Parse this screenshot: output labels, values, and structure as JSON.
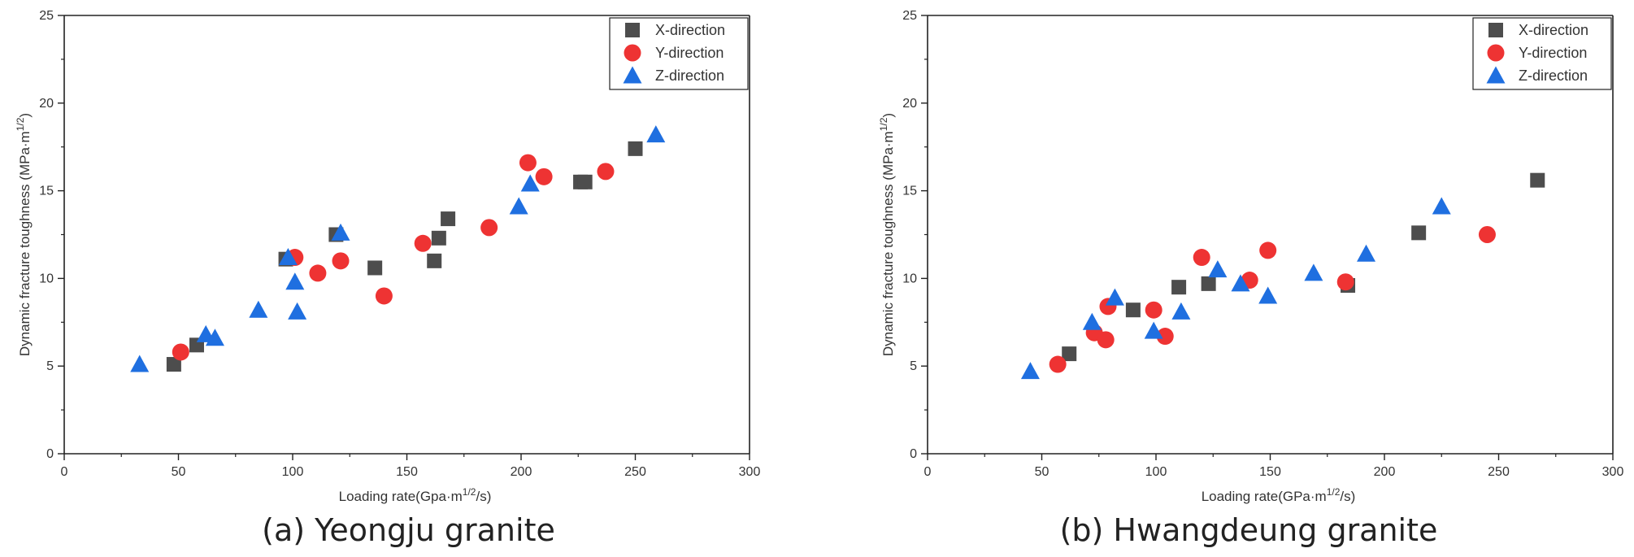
{
  "chart_data": [
    {
      "type": "scatter",
      "caption": "(a) Yeongju granite",
      "xlabel_main": "Loading rate(Gpa·m",
      "xlabel_sup": "1/2",
      "xlabel_end": "/s)",
      "ylabel_main": "Dynamic fracture toughness (MPa·m",
      "ylabel_sup": "1/2",
      "ylabel_end": ")",
      "xlim": [
        0,
        300
      ],
      "ylim": [
        0,
        25
      ],
      "xticks": [
        0,
        50,
        100,
        150,
        200,
        250,
        300
      ],
      "yticks": [
        0,
        5,
        10,
        15,
        20,
        25
      ],
      "legend": "top-right",
      "series": [
        {
          "name": "X-direction",
          "marker": "square",
          "color": "#4d4d4d",
          "points": [
            [
              48,
              5.1
            ],
            [
              58,
              6.2
            ],
            [
              97,
              11.1
            ],
            [
              119,
              12.5
            ],
            [
              136,
              10.6
            ],
            [
              162,
              11.0
            ],
            [
              164,
              12.3
            ],
            [
              168,
              13.4
            ],
            [
              226,
              15.5
            ],
            [
              228,
              15.5
            ],
            [
              250,
              17.4
            ]
          ]
        },
        {
          "name": "Y-direction",
          "marker": "circle",
          "color": "#ee3333",
          "points": [
            [
              51,
              5.8
            ],
            [
              101,
              11.2
            ],
            [
              111,
              10.3
            ],
            [
              121,
              11.0
            ],
            [
              140,
              9.0
            ],
            [
              157,
              12.0
            ],
            [
              186,
              12.9
            ],
            [
              203,
              16.6
            ],
            [
              210,
              15.8
            ],
            [
              237,
              16.1
            ]
          ]
        },
        {
          "name": "Z-direction",
          "marker": "triangle",
          "color": "#1f6fe0",
          "points": [
            [
              33,
              5.1
            ],
            [
              62,
              6.8
            ],
            [
              66,
              6.6
            ],
            [
              85,
              8.2
            ],
            [
              98,
              11.2
            ],
            [
              101,
              9.8
            ],
            [
              102,
              8.1
            ],
            [
              121,
              12.6
            ],
            [
              199,
              14.1
            ],
            [
              204,
              15.4
            ],
            [
              259,
              18.2
            ]
          ]
        }
      ]
    },
    {
      "type": "scatter",
      "caption": "(b) Hwangdeung granite",
      "xlabel_main": "Loading rate(GPa·m",
      "xlabel_sup": "1/2",
      "xlabel_end": "/s)",
      "ylabel_main": "Dynamic fracture toughness (MPa·m",
      "ylabel_sup": "1/2",
      "ylabel_end": ")",
      "xlim": [
        0,
        300
      ],
      "ylim": [
        0,
        25
      ],
      "xticks": [
        0,
        50,
        100,
        150,
        200,
        250,
        300
      ],
      "yticks": [
        0,
        5,
        10,
        15,
        20,
        25
      ],
      "legend": "top-right",
      "series": [
        {
          "name": "X-direction",
          "marker": "square",
          "color": "#4d4d4d",
          "points": [
            [
              62,
              5.7
            ],
            [
              90,
              8.2
            ],
            [
              110,
              9.5
            ],
            [
              123,
              9.7
            ],
            [
              184,
              9.6
            ],
            [
              215,
              12.6
            ],
            [
              267,
              15.6
            ]
          ]
        },
        {
          "name": "Y-direction",
          "marker": "circle",
          "color": "#ee3333",
          "points": [
            [
              57,
              5.1
            ],
            [
              73,
              6.9
            ],
            [
              78,
              6.5
            ],
            [
              79,
              8.4
            ],
            [
              99,
              8.2
            ],
            [
              104,
              6.7
            ],
            [
              120,
              11.2
            ],
            [
              141,
              9.9
            ],
            [
              149,
              11.6
            ],
            [
              183,
              9.8
            ],
            [
              245,
              12.5
            ]
          ]
        },
        {
          "name": "Z-direction",
          "marker": "triangle",
          "color": "#1f6fe0",
          "points": [
            [
              45,
              4.7
            ],
            [
              72,
              7.5
            ],
            [
              82,
              8.9
            ],
            [
              99,
              7.0
            ],
            [
              111,
              8.1
            ],
            [
              127,
              10.5
            ],
            [
              137,
              9.7
            ],
            [
              149,
              9.0
            ],
            [
              169,
              10.3
            ],
            [
              192,
              11.4
            ],
            [
              225,
              14.1
            ]
          ]
        }
      ]
    }
  ]
}
